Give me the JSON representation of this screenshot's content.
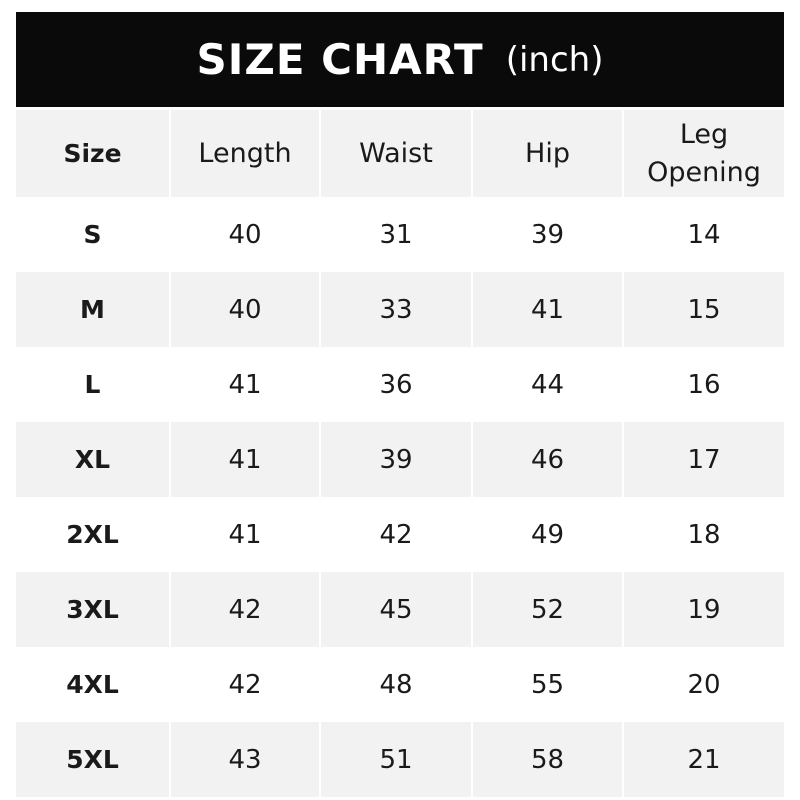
{
  "title": {
    "main": "SIZE CHART",
    "unit": "(inch)"
  },
  "columns": [
    "Size",
    "Length",
    "Waist",
    "Hip",
    "Leg Opening"
  ],
  "rows": [
    [
      "S",
      "40",
      "31",
      "39",
      "14"
    ],
    [
      "M",
      "40",
      "33",
      "41",
      "15"
    ],
    [
      "L",
      "41",
      "36",
      "44",
      "16"
    ],
    [
      "XL",
      "41",
      "39",
      "46",
      "17"
    ],
    [
      "2XL",
      "41",
      "42",
      "49",
      "18"
    ],
    [
      "3XL",
      "42",
      "45",
      "52",
      "19"
    ],
    [
      "4XL",
      "42",
      "48",
      "55",
      "20"
    ],
    [
      "5XL",
      "43",
      "51",
      "58",
      "21"
    ]
  ],
  "colors": {
    "header_bg": "#0a0a0a",
    "stripe": "#f2f2f2"
  }
}
